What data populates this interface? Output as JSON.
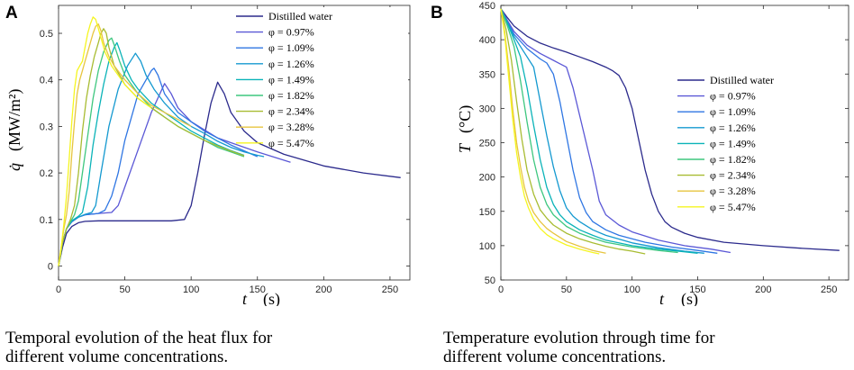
{
  "panel_a": {
    "letter": "A",
    "caption_line1": "Temporal evolution of the heat flux for",
    "caption_line2": "different volume concentrations."
  },
  "panel_b": {
    "letter": "B",
    "caption_line1": "Temperature evolution through time for",
    "caption_line2": "different volume concentrations."
  },
  "series_colors": [
    "#2b2a8c",
    "#5b58d6",
    "#2f76e3",
    "#1499d0",
    "#0ab3b8",
    "#3ec77f",
    "#a8bc32",
    "#e7c53f",
    "#f5f520"
  ],
  "chart_data": [
    {
      "type": "line",
      "title": "",
      "xlabel": "t (s)",
      "ylabel": "q̇ (MW/m²)",
      "xlim": [
        0,
        265
      ],
      "ylim": [
        -0.03,
        0.56
      ],
      "xticks": [
        "0",
        "50",
        "100",
        "150",
        "200",
        "250"
      ],
      "yticks": [
        "0",
        "0.1",
        "0.2",
        "0.3",
        "0.4",
        "0.5"
      ],
      "legend_position": "top-right",
      "series": [
        {
          "name": "Distilled water",
          "x": [
            0,
            3,
            6,
            10,
            15,
            20,
            30,
            50,
            70,
            85,
            95,
            100,
            105,
            110,
            115,
            120,
            125,
            130,
            140,
            150,
            170,
            200,
            230,
            258
          ],
          "y": [
            0,
            0.04,
            0.07,
            0.085,
            0.093,
            0.096,
            0.097,
            0.097,
            0.097,
            0.097,
            0.1,
            0.13,
            0.2,
            0.28,
            0.35,
            0.395,
            0.37,
            0.33,
            0.29,
            0.265,
            0.24,
            0.215,
            0.2,
            0.19
          ]
        },
        {
          "name": "φ = 0.97%",
          "x": [
            0,
            3,
            6,
            10,
            15,
            20,
            30,
            40,
            45,
            50,
            60,
            70,
            80,
            85,
            90,
            100,
            120,
            150,
            175
          ],
          "y": [
            0,
            0.05,
            0.08,
            0.095,
            0.105,
            0.11,
            0.113,
            0.115,
            0.13,
            0.17,
            0.25,
            0.33,
            0.392,
            0.37,
            0.34,
            0.31,
            0.275,
            0.245,
            0.223
          ]
        },
        {
          "name": "φ = 1.09%",
          "x": [
            0,
            3,
            6,
            10,
            15,
            20,
            30,
            35,
            40,
            45,
            50,
            60,
            70,
            72,
            75,
            80,
            90,
            110,
            130,
            150
          ],
          "y": [
            0,
            0.05,
            0.08,
            0.095,
            0.105,
            0.11,
            0.113,
            0.12,
            0.15,
            0.2,
            0.27,
            0.37,
            0.42,
            0.425,
            0.41,
            0.37,
            0.33,
            0.29,
            0.26,
            0.235
          ]
        },
        {
          "name": "φ = 1.26%",
          "x": [
            0,
            3,
            6,
            10,
            15,
            20,
            25,
            28,
            32,
            38,
            45,
            52,
            58,
            62,
            66,
            72,
            80,
            90,
            100,
            110,
            120,
            130,
            140,
            150,
            155
          ],
          "y": [
            0,
            0.05,
            0.08,
            0.097,
            0.105,
            0.111,
            0.115,
            0.13,
            0.2,
            0.3,
            0.38,
            0.43,
            0.457,
            0.44,
            0.41,
            0.38,
            0.35,
            0.32,
            0.3,
            0.285,
            0.268,
            0.255,
            0.245,
            0.238,
            0.235
          ]
        },
        {
          "name": "φ = 1.49%",
          "x": [
            0,
            3,
            6,
            10,
            15,
            18,
            22,
            26,
            30,
            34,
            38,
            42,
            44,
            46,
            50,
            55,
            60,
            70,
            80,
            90,
            100,
            110,
            120,
            130,
            140
          ],
          "y": [
            0,
            0.05,
            0.08,
            0.097,
            0.107,
            0.115,
            0.17,
            0.26,
            0.33,
            0.39,
            0.44,
            0.47,
            0.48,
            0.465,
            0.43,
            0.4,
            0.38,
            0.35,
            0.33,
            0.31,
            0.29,
            0.275,
            0.26,
            0.248,
            0.238
          ]
        },
        {
          "name": "φ = 1.82%",
          "x": [
            0,
            3,
            6,
            10,
            12,
            15,
            18,
            22,
            26,
            30,
            34,
            38,
            40,
            42,
            46,
            50,
            55,
            60,
            70,
            80,
            90,
            100,
            110,
            120,
            130,
            140
          ],
          "y": [
            0,
            0.05,
            0.08,
            0.1,
            0.11,
            0.14,
            0.2,
            0.28,
            0.36,
            0.42,
            0.46,
            0.485,
            0.49,
            0.475,
            0.44,
            0.41,
            0.39,
            0.37,
            0.34,
            0.32,
            0.3,
            0.285,
            0.27,
            0.255,
            0.245,
            0.235
          ]
        },
        {
          "name": "φ = 2.34%",
          "x": [
            0,
            3,
            6,
            9,
            12,
            15,
            18,
            21,
            24,
            27,
            30,
            32,
            34,
            36,
            38,
            42,
            46,
            50,
            60,
            70,
            80,
            90,
            100,
            110,
            120,
            130,
            140
          ],
          "y": [
            0,
            0.05,
            0.08,
            0.1,
            0.13,
            0.2,
            0.29,
            0.36,
            0.41,
            0.45,
            0.48,
            0.5,
            0.51,
            0.5,
            0.47,
            0.43,
            0.41,
            0.39,
            0.36,
            0.34,
            0.32,
            0.3,
            0.285,
            0.27,
            0.258,
            0.247,
            0.237
          ]
        },
        {
          "name": "φ = 3.28%",
          "x": [
            0,
            2,
            4,
            6,
            8,
            10,
            12,
            14,
            16,
            18,
            20,
            22,
            24,
            26,
            28,
            30,
            32,
            34,
            38,
            42,
            50,
            60,
            70,
            80,
            90,
            100
          ],
          "y": [
            0,
            0.04,
            0.08,
            0.11,
            0.16,
            0.24,
            0.31,
            0.37,
            0.4,
            0.42,
            0.44,
            0.46,
            0.48,
            0.5,
            0.515,
            0.52,
            0.505,
            0.48,
            0.45,
            0.43,
            0.4,
            0.37,
            0.345,
            0.33,
            0.315,
            0.3
          ]
        },
        {
          "name": "φ = 5.47%",
          "x": [
            0,
            2,
            4,
            6,
            8,
            10,
            12,
            14,
            16,
            18,
            20,
            22,
            24,
            26,
            28,
            30,
            32,
            35,
            40,
            45,
            50,
            55,
            60,
            65,
            70
          ],
          "y": [
            0,
            0.04,
            0.09,
            0.15,
            0.23,
            0.31,
            0.38,
            0.42,
            0.43,
            0.44,
            0.47,
            0.5,
            0.52,
            0.535,
            0.53,
            0.51,
            0.49,
            0.46,
            0.43,
            0.41,
            0.39,
            0.375,
            0.36,
            0.35,
            0.34
          ]
        }
      ]
    },
    {
      "type": "line",
      "title": "",
      "xlabel": "t (s)",
      "ylabel": "T (°C)",
      "xlim": [
        0,
        265
      ],
      "ylim": [
        50,
        450
      ],
      "xticks": [
        "0",
        "50",
        "100",
        "150",
        "200",
        "250"
      ],
      "yticks": [
        "50",
        "100",
        "150",
        "200",
        "250",
        "300",
        "350",
        "400",
        "450"
      ],
      "legend_position": "center-right",
      "series": [
        {
          "name": "Distilled water",
          "x": [
            0,
            5,
            10,
            20,
            30,
            40,
            50,
            60,
            70,
            80,
            85,
            90,
            95,
            100,
            105,
            110,
            115,
            120,
            125,
            130,
            140,
            150,
            170,
            200,
            230,
            258
          ],
          "y": [
            445,
            432,
            420,
            405,
            395,
            388,
            382,
            375,
            368,
            360,
            355,
            348,
            330,
            300,
            255,
            210,
            175,
            150,
            135,
            127,
            118,
            112,
            105,
            100,
            96,
            93
          ]
        },
        {
          "name": "φ = 0.97%",
          "x": [
            0,
            5,
            10,
            20,
            30,
            40,
            45,
            50,
            55,
            60,
            70,
            75,
            80,
            90,
            100,
            120,
            140,
            160,
            175
          ],
          "y": [
            445,
            428,
            412,
            392,
            380,
            370,
            365,
            360,
            330,
            290,
            210,
            165,
            145,
            130,
            120,
            108,
            100,
            95,
            90
          ]
        },
        {
          "name": "φ = 1.09%",
          "x": [
            0,
            5,
            10,
            20,
            30,
            35,
            40,
            45,
            50,
            55,
            60,
            65,
            70,
            80,
            90,
            110,
            130,
            150,
            165
          ],
          "y": [
            445,
            426,
            408,
            387,
            372,
            366,
            350,
            310,
            260,
            210,
            170,
            148,
            135,
            123,
            115,
            105,
            98,
            93,
            89
          ]
        },
        {
          "name": "φ = 1.26%",
          "x": [
            0,
            5,
            10,
            15,
            20,
            25,
            30,
            35,
            40,
            45,
            50,
            55,
            60,
            70,
            80,
            100,
            120,
            140,
            155
          ],
          "y": [
            445,
            425,
            405,
            390,
            375,
            360,
            310,
            260,
            215,
            180,
            155,
            143,
            135,
            123,
            115,
            104,
            97,
            92,
            89
          ]
        },
        {
          "name": "φ = 1.49%",
          "x": [
            0,
            5,
            10,
            15,
            20,
            25,
            30,
            35,
            40,
            45,
            50,
            60,
            70,
            80,
            100,
            120,
            140,
            150
          ],
          "y": [
            445,
            424,
            400,
            375,
            330,
            275,
            225,
            185,
            160,
            145,
            135,
            123,
            115,
            108,
            100,
            95,
            91,
            89
          ]
        },
        {
          "name": "φ = 1.82%",
          "x": [
            0,
            5,
            10,
            15,
            20,
            25,
            30,
            35,
            40,
            50,
            60,
            70,
            80,
            100,
            120,
            135
          ],
          "y": [
            445,
            420,
            390,
            340,
            280,
            225,
            185,
            160,
            145,
            128,
            118,
            111,
            105,
            98,
            93,
            90
          ]
        },
        {
          "name": "φ = 2.34%",
          "x": [
            0,
            4,
            8,
            12,
            16,
            20,
            25,
            30,
            35,
            40,
            50,
            60,
            70,
            80,
            90,
            100,
            110
          ],
          "y": [
            445,
            415,
            370,
            310,
            255,
            210,
            175,
            152,
            140,
            130,
            118,
            110,
            104,
            99,
            95,
            92,
            88
          ]
        },
        {
          "name": "φ = 3.28%",
          "x": [
            0,
            3,
            6,
            9,
            12,
            15,
            18,
            21,
            25,
            30,
            35,
            40,
            50,
            60,
            70,
            80
          ],
          "y": [
            445,
            410,
            360,
            300,
            250,
            215,
            185,
            165,
            148,
            135,
            125,
            118,
            106,
            99,
            93,
            89
          ]
        },
        {
          "name": "φ = 5.47%",
          "x": [
            0,
            3,
            6,
            9,
            12,
            15,
            18,
            21,
            25,
            30,
            35,
            40,
            50,
            60,
            70,
            75
          ],
          "y": [
            445,
            405,
            345,
            285,
            235,
            200,
            172,
            155,
            138,
            125,
            116,
            110,
            101,
            95,
            90,
            88
          ]
        }
      ]
    }
  ]
}
